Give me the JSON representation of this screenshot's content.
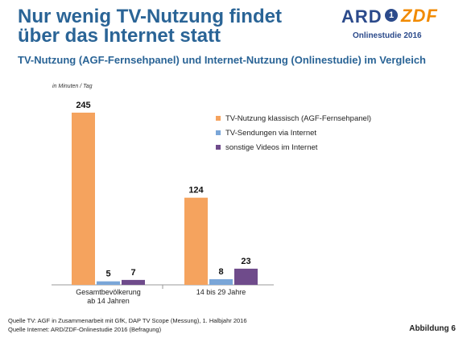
{
  "title": "Nur wenig TV-Nutzung findet über das Internet statt",
  "subtitle": "TV-Nutzung (AGF-Fernsehpanel) und Internet-Nutzung (Onlinestudie) im Vergleich",
  "logo": {
    "ard": "ARD",
    "ard_number": "1",
    "zdf": "ZDF",
    "study": "Onlinestudie 2016"
  },
  "chart_data": {
    "type": "bar",
    "title": "",
    "unit_note": "in Minuten / Tag",
    "xlabel": "",
    "ylabel": "",
    "categories": [
      [
        "Gesamtbevölkerung",
        "ab 14 Jahren"
      ],
      [
        "14 bis 29 Jahre"
      ]
    ],
    "series": [
      {
        "name": "TV-Nutzung klassisch (AGF-Fernsehpanel)",
        "color": "#f5a35e",
        "values": [
          245,
          124
        ]
      },
      {
        "name": "TV-Sendungen via Internet",
        "color": "#7aa6d8",
        "values": [
          5,
          8
        ]
      },
      {
        "name": "sonstige Videos im Internet",
        "color": "#6f4b8b",
        "values": [
          7,
          23
        ]
      }
    ],
    "ylim": [
      0,
      245
    ],
    "grid": false,
    "legend": "right"
  },
  "footer": {
    "line1": "Quelle TV: AGF in Zusammenarbeit mit GfK, DAP TV Scope (Messung), 1. Halbjahr 2016",
    "line2": "Quelle Internet: ARD/ZDF-Onlinestudie 2016 (Befragung)"
  },
  "figure_label": "Abbildung 6"
}
